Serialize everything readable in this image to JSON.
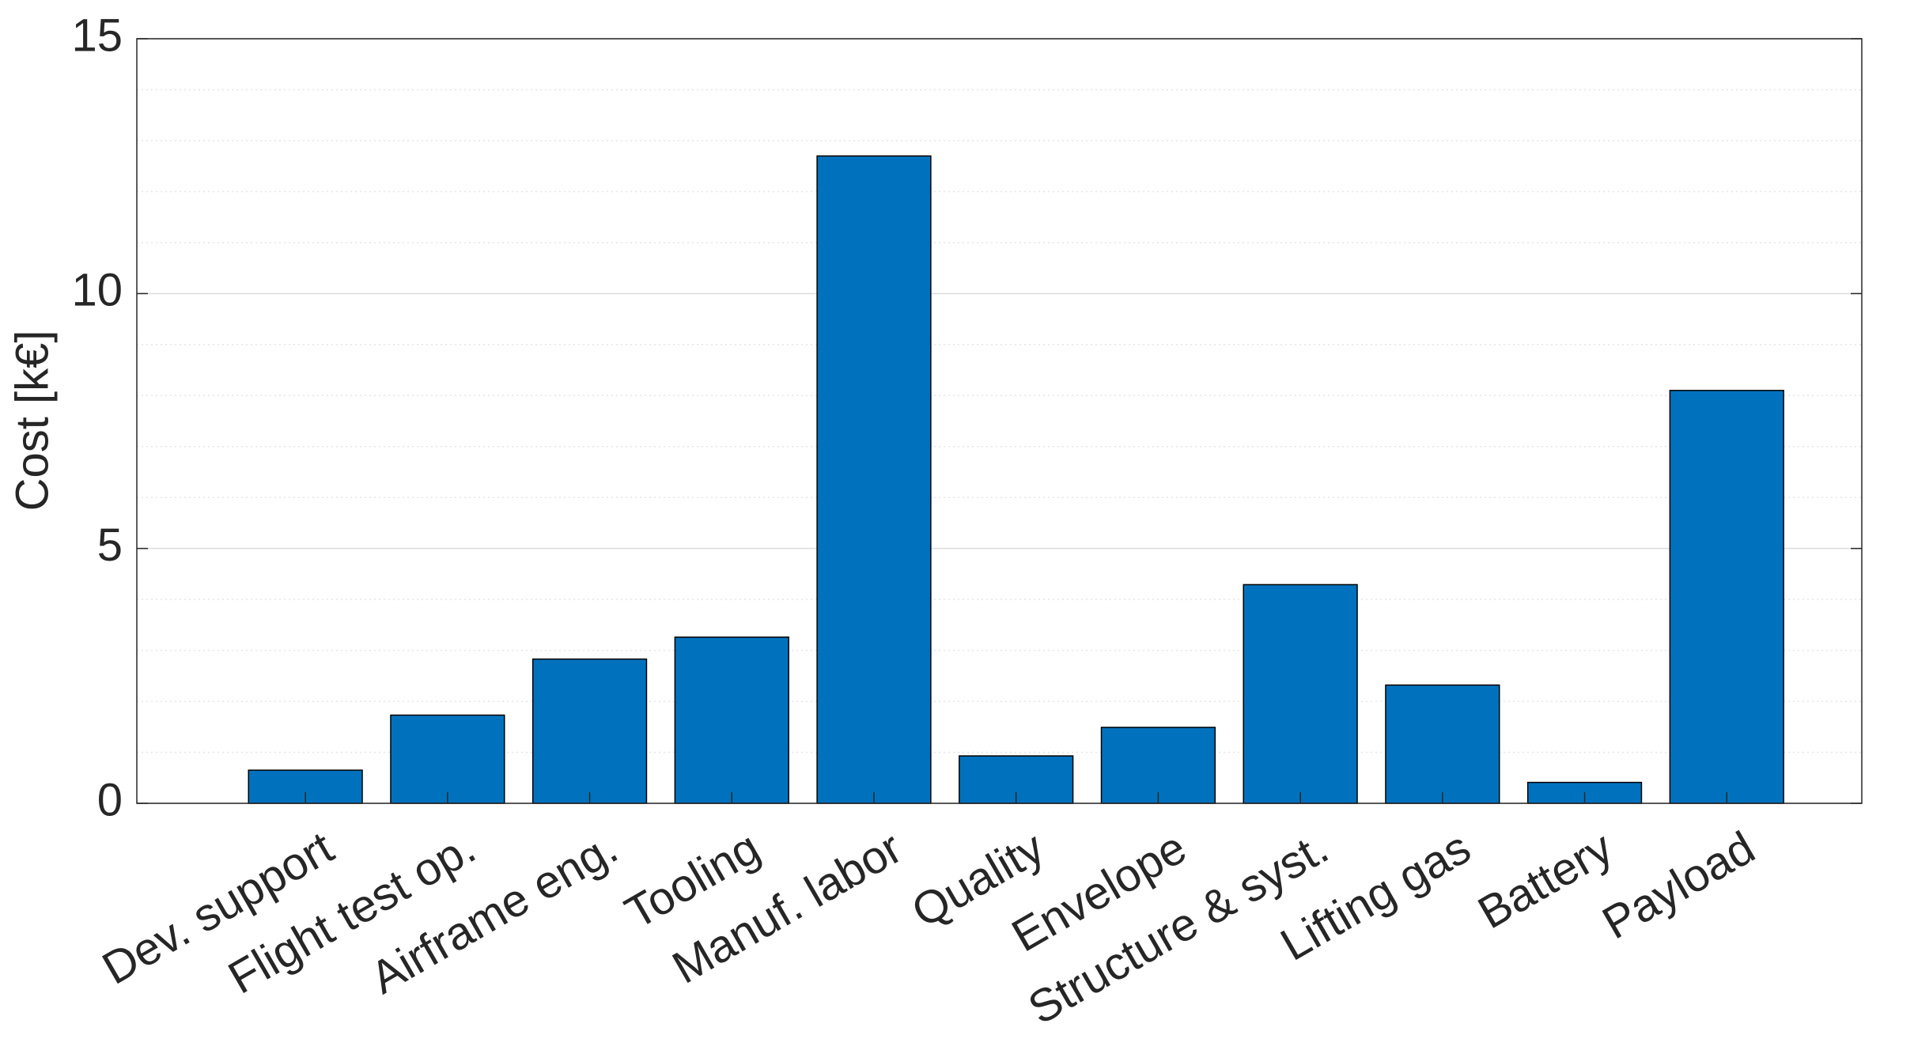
{
  "chart_data": {
    "type": "bar",
    "ylabel": "Cost [k€]",
    "categories": [
      "Dev. support",
      "Flight test op.",
      "Airframe eng.",
      "Tooling",
      "Manuf. labor",
      "Quality",
      "Envelope",
      "Structure & syst.",
      "Lifting gas",
      "Battery",
      "Payload"
    ],
    "values": [
      0.65,
      1.73,
      2.83,
      3.26,
      12.7,
      0.93,
      1.49,
      4.29,
      2.32,
      0.41,
      8.1
    ],
    "color": "#0072bd",
    "ylim": [
      0,
      15
    ],
    "yticks": [
      0,
      5,
      10,
      15
    ],
    "yminorticks": [
      1,
      2,
      3,
      4,
      6,
      7,
      8,
      9,
      11,
      12,
      13,
      14
    ],
    "grid": true,
    "minor_grid": true
  }
}
